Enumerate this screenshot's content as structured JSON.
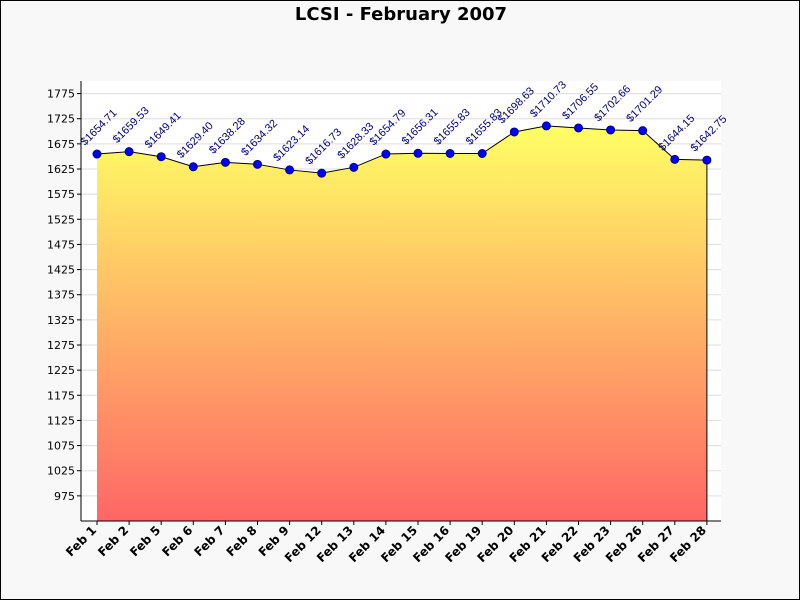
{
  "chart_data": {
    "type": "area",
    "title": "LCSI - February 2007",
    "xlabel": "",
    "ylabel": "",
    "categories": [
      "Feb 1",
      "Feb 2",
      "Feb 5",
      "Feb 6",
      "Feb 7",
      "Feb 8",
      "Feb 9",
      "Feb 12",
      "Feb 13",
      "Feb 14",
      "Feb 15",
      "Feb 16",
      "Feb 19",
      "Feb 20",
      "Feb 21",
      "Feb 22",
      "Feb 23",
      "Feb 26",
      "Feb 27",
      "Feb 28"
    ],
    "values": [
      1654.71,
      1659.53,
      1649.41,
      1629.4,
      1638.28,
      1634.32,
      1623.14,
      1616.73,
      1628.33,
      1654.79,
      1656.31,
      1655.83,
      1655.83,
      1698.63,
      1710.73,
      1706.55,
      1702.66,
      1701.29,
      1644.15,
      1642.75
    ],
    "data_labels": [
      "$1654.71",
      "$1659.53",
      "$1649.41",
      "$1629.40",
      "$1638.28",
      "$1634.32",
      "$1623.14",
      "$1616.73",
      "$1628.33",
      "$1654.79",
      "$1656.31",
      "$1655.83",
      "$1655.83",
      "$1698.63",
      "$1710.73",
      "$1706.55",
      "$1702.66",
      "$1701.29",
      "$1644.15",
      "$1642.75"
    ],
    "yticks": [
      975,
      1025,
      1075,
      1125,
      1175,
      1225,
      1275,
      1325,
      1375,
      1425,
      1475,
      1525,
      1575,
      1625,
      1675,
      1725,
      1775
    ],
    "ylim": [
      925,
      1800
    ],
    "grid": true,
    "legend": "none",
    "colors": {
      "area_top": "#ffff66",
      "area_bottom": "#ff6666",
      "line": "#000000",
      "marker_fill": "#0000ff",
      "marker_stroke": "#000080",
      "data_label": "#000080",
      "grid": "#dddddd",
      "plot_background": "#ffffff",
      "frame_background": "#f8f8f8"
    }
  }
}
